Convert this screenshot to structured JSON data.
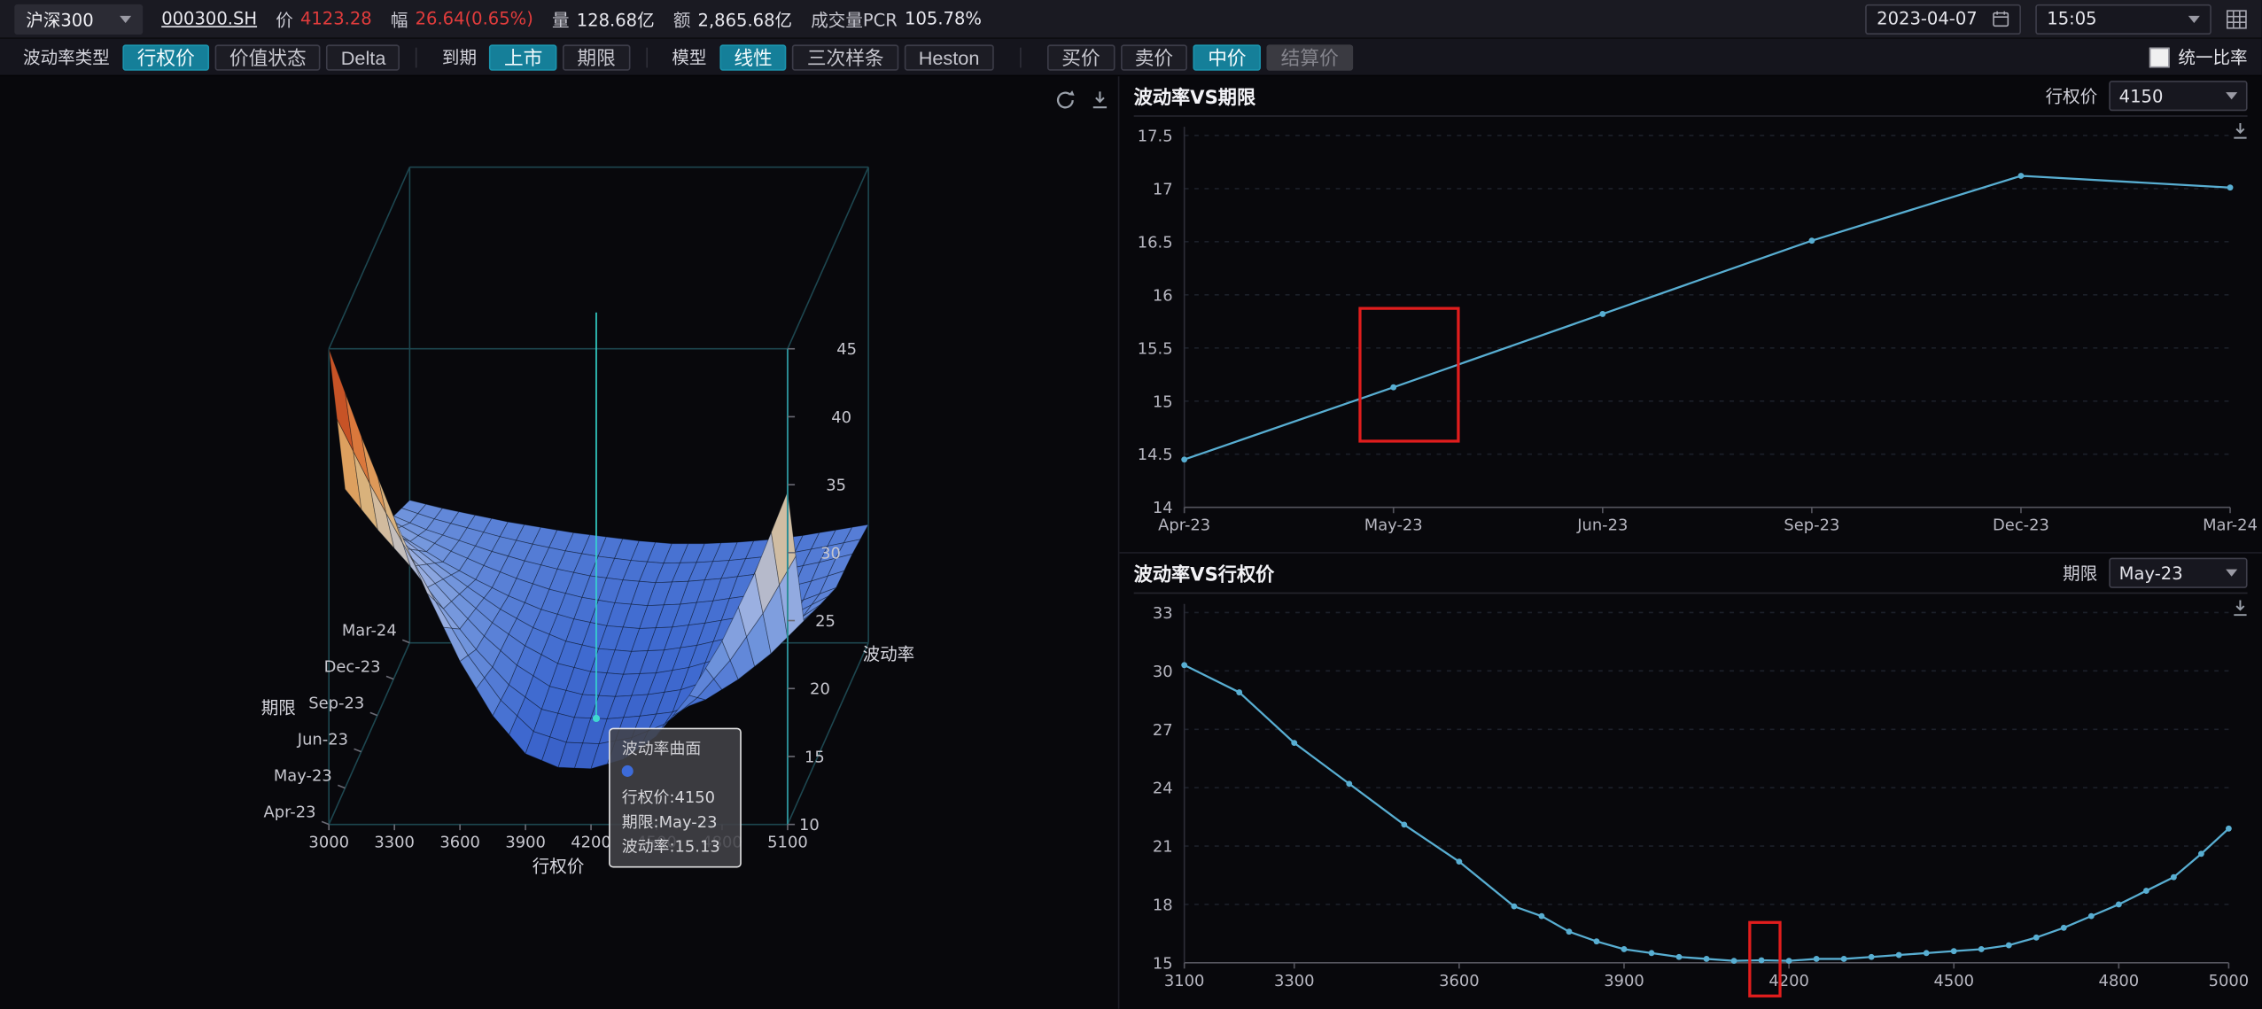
{
  "topbar": {
    "index_selector": "沪深300",
    "symbol": "000300.SH",
    "stats": [
      {
        "label": "价",
        "value": "4123.28"
      },
      {
        "label": "幅",
        "value": "26.64(0.65%)"
      },
      {
        "label": "量",
        "value": "128.68亿"
      },
      {
        "label": "额",
        "value": "2,865.68亿"
      },
      {
        "label": "成交量PCR",
        "value": "105.78%"
      }
    ],
    "date": "2023-04-07",
    "time": "15:05"
  },
  "toolbar": {
    "vol_type_label": "波动率类型",
    "strike_btn": "行权价",
    "value_state_btn": "价值状态",
    "delta_btn": "Delta",
    "expiry_label": "到期",
    "listed_btn": "上市",
    "term_btn": "期限",
    "model_label": "模型",
    "linear_btn": "线性",
    "cubic_btn": "三次样条",
    "heston_btn": "Heston",
    "bid_btn": "买价",
    "ask_btn": "卖价",
    "mid_btn": "中价",
    "settle_btn": "结算价",
    "unified_ratio_label": "统一比率"
  },
  "surface_panel": {
    "tooltip": {
      "title": "波动率曲面",
      "strike_row": "行权价:4150",
      "term_row": "期限:May-23",
      "vol_row": "波动率:15.13"
    }
  },
  "term_panel": {
    "title": "波动率VS期限",
    "selector_label": "行权价",
    "selector_value": "4150"
  },
  "strike_panel": {
    "title": "波动率VS行权价",
    "selector_label": "期限",
    "selector_value": "May-23"
  },
  "chart_data": [
    {
      "id": "vol_surface",
      "type": "surface",
      "title": "波动率曲面",
      "xlabel": "行权价",
      "ylabel": "期限",
      "zlabel": "波动率",
      "x_range": [
        3000,
        5100
      ],
      "x_ticks": [
        3000,
        3300,
        3600,
        3900,
        4200,
        4500,
        4800,
        5100
      ],
      "y_categories": [
        "Apr-23",
        "May-23",
        "Jun-23",
        "Sep-23",
        "Dec-23",
        "Mar-24"
      ],
      "zlim": [
        10,
        45
      ],
      "z_ticks": [
        10,
        15,
        20,
        25,
        30,
        35,
        40,
        45
      ],
      "strikes": [
        3000,
        3150,
        3300,
        3450,
        3600,
        3750,
        3900,
        4050,
        4200,
        4350,
        4500,
        4650,
        4800,
        4950,
        5100
      ],
      "values": [
        [
          45.0,
          38.5,
          32.5,
          27.0,
          22.0,
          18.0,
          15.2,
          14.2,
          14.1,
          14.8,
          16.5,
          19.5,
          23.5,
          28.5,
          34.5
        ],
        [
          32.0,
          29.0,
          26.3,
          23.2,
          20.2,
          17.6,
          15.8,
          15.2,
          15.1,
          15.3,
          15.6,
          16.5,
          18.0,
          19.9,
          22.3
        ],
        [
          28.5,
          26.0,
          23.8,
          21.6,
          19.5,
          17.8,
          16.5,
          15.9,
          15.7,
          15.8,
          16.2,
          16.9,
          17.9,
          19.2,
          20.8
        ],
        [
          24.5,
          22.8,
          21.3,
          20.0,
          18.8,
          17.8,
          17.1,
          16.6,
          16.4,
          16.5,
          16.8,
          17.2,
          17.8,
          18.5,
          19.4
        ],
        [
          22.0,
          21.0,
          20.2,
          19.4,
          18.7,
          18.1,
          17.6,
          17.3,
          17.1,
          17.2,
          17.4,
          17.7,
          18.1,
          18.6,
          19.2
        ],
        [
          20.5,
          19.9,
          19.4,
          18.9,
          18.5,
          18.1,
          17.8,
          17.5,
          17.3,
          17.3,
          17.4,
          17.6,
          17.9,
          18.3,
          18.7
        ]
      ],
      "marker": {
        "strike": 4150,
        "term": "May-23",
        "term_index": 1,
        "vol": 15.13
      }
    },
    {
      "id": "vol_vs_term",
      "type": "line",
      "title": "波动率VS期限",
      "categories": [
        "Apr-23",
        "May-23",
        "Jun-23",
        "Sep-23",
        "Dec-23",
        "Mar-24"
      ],
      "values": [
        14.45,
        15.13,
        15.82,
        16.51,
        17.12,
        17.01
      ],
      "ylim": [
        14,
        17.5
      ],
      "y_ticks": [
        14,
        14.5,
        15,
        15.5,
        16,
        16.5,
        17,
        17.5
      ],
      "color": "#58aed2",
      "highlight_box": {
        "x0": 0.168,
        "x1": 0.262,
        "y0": 0.465,
        "y1": 0.822
      }
    },
    {
      "id": "vol_vs_strike",
      "type": "line",
      "title": "波动率VS行权价",
      "x": [
        3100,
        3200,
        3300,
        3400,
        3500,
        3600,
        3700,
        3750,
        3800,
        3850,
        3900,
        3950,
        4000,
        4050,
        4100,
        4150,
        4200,
        4250,
        4300,
        4350,
        4400,
        4450,
        4500,
        4550,
        4600,
        4650,
        4700,
        4750,
        4800,
        4850,
        4900,
        4950,
        5000
      ],
      "values": [
        30.3,
        28.9,
        26.3,
        24.2,
        22.1,
        20.2,
        17.9,
        17.4,
        16.6,
        16.1,
        15.7,
        15.5,
        15.3,
        15.2,
        15.1,
        15.13,
        15.1,
        15.2,
        15.2,
        15.3,
        15.4,
        15.5,
        15.6,
        15.7,
        15.9,
        16.3,
        16.8,
        17.4,
        18.0,
        18.7,
        19.4,
        20.6,
        21.9
      ],
      "xlim": [
        3100,
        5000
      ],
      "x_ticks": [
        3100,
        3300,
        3600,
        3900,
        4200,
        4500,
        4800,
        5000
      ],
      "ylim": [
        15,
        33
      ],
      "y_ticks": [
        15,
        18,
        21,
        24,
        27,
        30,
        33
      ],
      "color": "#58aed2",
      "highlight_box": {
        "x0": 0.5414,
        "x1": 0.5704,
        "y0": 0.8848,
        "y1": 1.0947
      }
    }
  ]
}
